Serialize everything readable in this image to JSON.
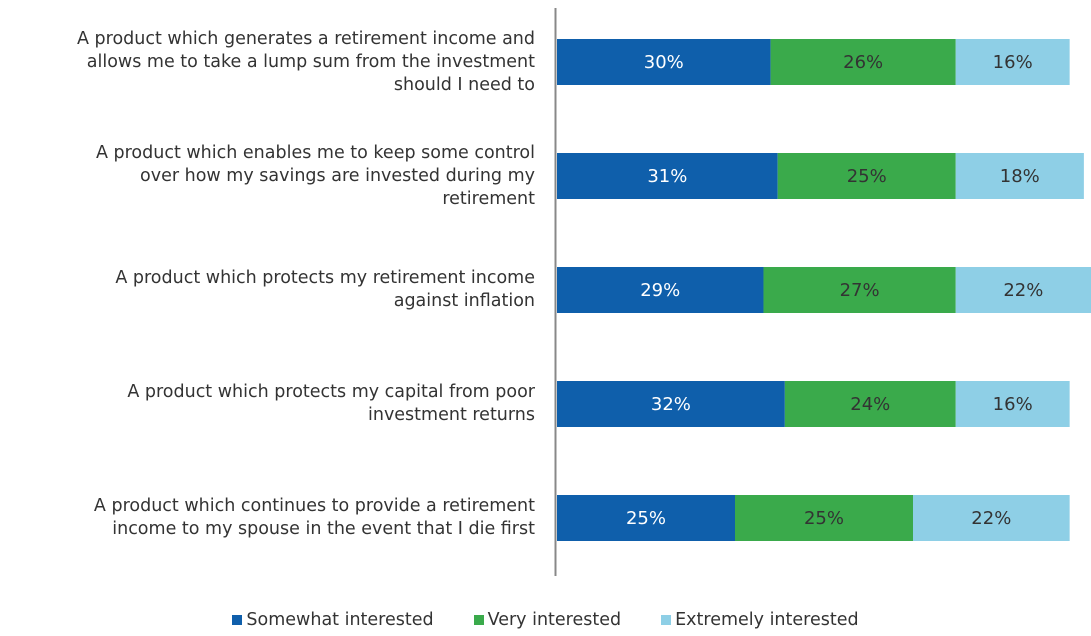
{
  "chart_data": {
    "type": "stacked-bar",
    "orientation": "horizontal",
    "categories": [
      "A product which generates a retirement income and\nallows me to take a lump sum from the investment\nshould I need to",
      "A product which enables me to keep some control\nover how my savings are invested during my\nretirement",
      "A product which protects my retirement income\nagainst inflation",
      "A product which protects my capital from poor\ninvestment returns",
      "A product which continues to provide a retirement\nincome to my spouse in the event that I die first"
    ],
    "series": [
      {
        "name": "Somewhat interested",
        "color": "#0f5fab",
        "values": [
          30,
          31,
          29,
          32,
          25
        ],
        "value_labels": [
          "30%",
          "31%",
          "29%",
          "32%",
          "25%"
        ]
      },
      {
        "name": "Very interested",
        "color": "#3aaa4b",
        "values": [
          26,
          25,
          27,
          24,
          25
        ],
        "value_labels": [
          "26%",
          "25%",
          "27%",
          "24%",
          "25%"
        ]
      },
      {
        "name": "Extremely interested",
        "color": "#8ecfe6",
        "values": [
          16,
          18,
          22,
          16,
          22
        ],
        "value_labels": [
          "16%",
          "18%",
          "22%",
          "16%",
          "22%"
        ]
      }
    ],
    "xlim": [
      0,
      75
    ],
    "legend": "bottom"
  }
}
